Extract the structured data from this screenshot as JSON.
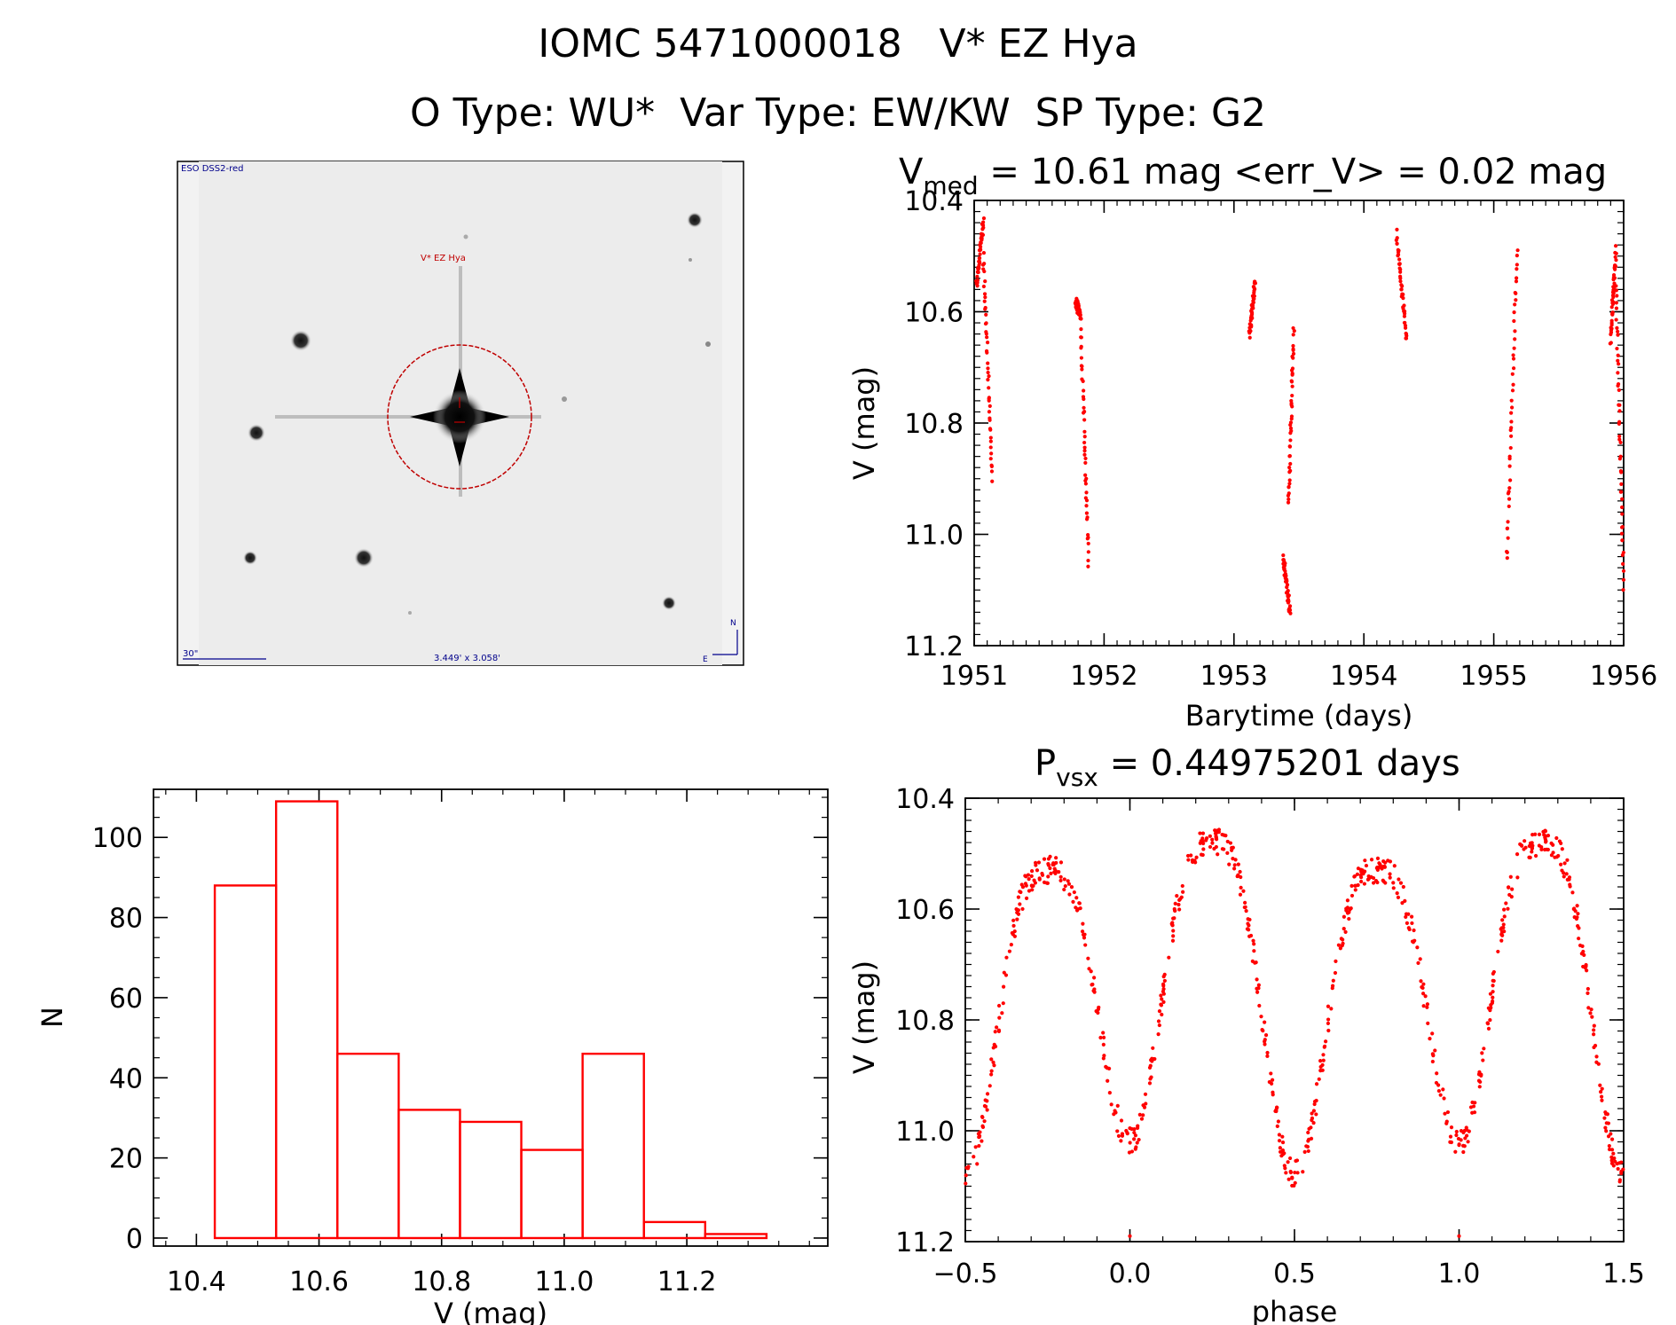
{
  "header": {
    "line1": "IOMC 5471000018   V* EZ Hya",
    "line2": "O Type: WU*  Var Type: EW/KW  SP Type: G2"
  },
  "finder": {
    "survey_label": "ESO DSS2-red",
    "target_label": "V* EZ Hya",
    "scale_label": "30\"",
    "fov_label": "3.449' x 3.058'",
    "north_label": "N",
    "east_label": "E",
    "marker_color": "#c00000",
    "annotation_color": "#00008b"
  },
  "colors": {
    "data": "#ff0000",
    "axes": "#000000",
    "background": "#ffffff"
  },
  "panels": {
    "lightcurve": {
      "title_main": "V",
      "title_sub": "med",
      "title_rest": " = 10.61 mag <err_V> = 0.02 mag"
    },
    "phase": {
      "title_main": "P",
      "title_sub": "vsx",
      "title_rest": " = 0.44975201 days"
    }
  },
  "chart_data": [
    {
      "id": "lightcurve",
      "type": "scatter",
      "xlabel": "Barytime (days)",
      "ylabel": "V (mag)",
      "xlim": [
        1951,
        1956
      ],
      "ylim": [
        11.2,
        10.4
      ],
      "y_inverted": true,
      "xticks": [
        "1951",
        "1952",
        "1953",
        "1954",
        "1955",
        "1956"
      ],
      "yticks": [
        "10.4",
        "10.6",
        "10.8",
        "11.0",
        "11.2"
      ],
      "segments": [
        {
          "x0": 1951.02,
          "x1": 1951.07,
          "y0": 10.55,
          "y1": 10.44
        },
        {
          "x0": 1951.07,
          "x1": 1951.14,
          "y0": 10.5,
          "y1": 10.9
        },
        {
          "x0": 1951.78,
          "x1": 1951.82,
          "y0": 10.58,
          "y1": 10.61
        },
        {
          "x0": 1951.82,
          "x1": 1951.88,
          "y0": 10.62,
          "y1": 11.05
        },
        {
          "x0": 1953.12,
          "x1": 1953.16,
          "y0": 10.64,
          "y1": 10.55
        },
        {
          "x0": 1953.42,
          "x1": 1953.46,
          "y0": 10.95,
          "y1": 10.63
        },
        {
          "x0": 1953.38,
          "x1": 1953.43,
          "y0": 11.04,
          "y1": 11.14
        },
        {
          "x0": 1954.25,
          "x1": 1954.33,
          "y0": 10.46,
          "y1": 10.65
        },
        {
          "x0": 1955.1,
          "x1": 1955.18,
          "y0": 11.05,
          "y1": 10.48
        },
        {
          "x0": 1955.9,
          "x1": 1955.94,
          "y0": 10.65,
          "y1": 10.49
        },
        {
          "x0": 1955.94,
          "x1": 1956.0,
          "y0": 10.55,
          "y1": 11.09
        }
      ]
    },
    {
      "id": "histogram",
      "type": "bar",
      "xlabel": "V (mag)",
      "ylabel": "N",
      "xlim": [
        10.33,
        11.43
      ],
      "ylim": [
        -2,
        112
      ],
      "xticks": [
        "10.4",
        "10.6",
        "10.8",
        "11.0",
        "11.2"
      ],
      "yticks": [
        "0",
        "20",
        "40",
        "60",
        "80",
        "100"
      ],
      "bin_edges": [
        10.43,
        10.53,
        10.63,
        10.73,
        10.83,
        10.93,
        11.03,
        11.13,
        11.23,
        11.33
      ],
      "values": [
        88,
        109,
        46,
        32,
        29,
        22,
        46,
        4,
        1
      ]
    },
    {
      "id": "phase",
      "type": "scatter",
      "xlabel": "phase",
      "ylabel": "V (mag)",
      "xlim": [
        -0.5,
        1.5
      ],
      "ylim": [
        11.2,
        10.4
      ],
      "y_inverted": true,
      "xticks": [
        "−0.5",
        "0.0",
        "0.5",
        "1.0",
        "1.5"
      ],
      "yticks": [
        "10.4",
        "10.6",
        "10.8",
        "11.0",
        "11.2"
      ],
      "model": {
        "period_days": 0.44975201,
        "primary_min_phase": 0.0,
        "primary_min_mag": 11.02,
        "secondary_min_phase": 0.5,
        "secondary_min_mag": 11.08,
        "max1_phase": 0.25,
        "max1_mag": 10.48,
        "max2_phase": 0.75,
        "max2_mag": 10.53
      },
      "outliers": [
        [
          0.0,
          11.19
        ],
        [
          1.0,
          11.19
        ]
      ]
    }
  ]
}
